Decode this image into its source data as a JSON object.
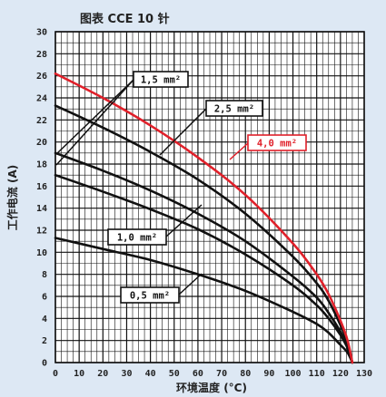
{
  "chart_data": {
    "type": "line",
    "title": "图表 CCE 10 针",
    "xlabel": "环境温度 (°C)",
    "ylabel": "工作电流 (A)",
    "xlim": [
      0,
      130
    ],
    "ylim": [
      0,
      30
    ],
    "x_ticks": [
      "0",
      "10",
      "20",
      "30",
      "40",
      "50",
      "60",
      "70",
      "80",
      "90",
      "100",
      "110",
      "120",
      "130"
    ],
    "y_ticks": [
      "0",
      "2",
      "4",
      "6",
      "8",
      "10",
      "12",
      "14",
      "16",
      "18",
      "20",
      "22",
      "24",
      "26",
      "28",
      "30"
    ],
    "grid": true,
    "colors": {
      "background": "#dde8f4",
      "grid": "#111111",
      "plot": "#ffffff",
      "highlight": "#e0202a",
      "default": "#111111"
    },
    "series": [
      {
        "name": "4,0 mm²",
        "color": "#e0202a",
        "x": [
          0,
          20,
          40,
          60,
          80,
          100,
          110,
          115,
          120,
          123,
          125
        ],
        "y": [
          26.2,
          24.0,
          21.5,
          18.6,
          15.2,
          10.8,
          8.0,
          6.2,
          3.8,
          2.0,
          0
        ]
      },
      {
        "name": "2,5 mm²",
        "color": "#111111",
        "x": [
          0,
          20,
          40,
          60,
          80,
          100,
          110,
          115,
          120,
          123,
          125
        ],
        "y": [
          23.3,
          21.3,
          19.1,
          16.6,
          13.5,
          9.6,
          7.2,
          5.6,
          3.4,
          1.8,
          0
        ]
      },
      {
        "name": "1,5 mm²",
        "color": "#111111",
        "x": [
          0,
          20,
          40,
          60,
          80,
          100,
          110,
          115,
          120,
          123,
          125
        ],
        "y": [
          19.0,
          17.4,
          15.6,
          13.5,
          11.0,
          7.8,
          5.9,
          4.5,
          2.8,
          1.5,
          0
        ]
      },
      {
        "name": "1,0 mm²",
        "color": "#111111",
        "x": [
          0,
          20,
          40,
          60,
          80,
          100,
          110,
          115,
          120,
          123,
          125
        ],
        "y": [
          17.0,
          15.5,
          13.9,
          12.1,
          9.8,
          7.0,
          5.2,
          4.0,
          2.5,
          1.3,
          0
        ]
      },
      {
        "name": "0,5 mm²",
        "color": "#111111",
        "x": [
          0,
          20,
          40,
          60,
          80,
          100,
          110,
          115,
          120,
          123,
          125
        ],
        "y": [
          11.3,
          10.3,
          9.3,
          8.0,
          6.5,
          4.6,
          3.5,
          2.7,
          1.6,
          0.9,
          0
        ]
      }
    ],
    "annotations": [
      {
        "text": "1,5 mm²",
        "series": "1,5 mm²",
        "color": "#111111"
      },
      {
        "text": "2,5 mm²",
        "series": "2,5 mm²",
        "color": "#111111"
      },
      {
        "text": "4,0 mm²",
        "series": "4,0 mm²",
        "color": "#e0202a"
      },
      {
        "text": "1,0 mm²",
        "series": "1,0 mm²",
        "color": "#111111"
      },
      {
        "text": "0,5 mm²",
        "series": "0,5 mm²",
        "color": "#111111"
      }
    ]
  }
}
